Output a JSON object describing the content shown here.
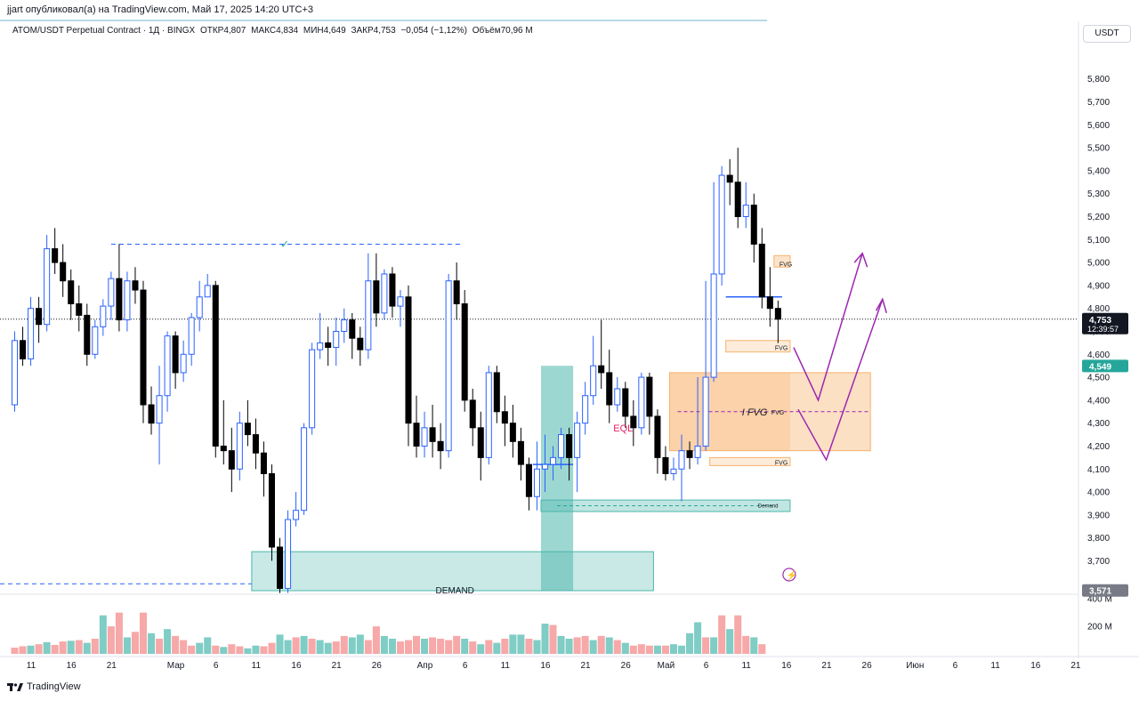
{
  "header": {
    "published": "jjart опубликовал(а) на TradingView.com, Май 17, 2025 14:20 UTC+3"
  },
  "legend": {
    "symbol": "ATOM/USDT Perpetual Contract · 1Д · BINGX",
    "open": "ОТКР4,807",
    "high": "МАКС4,834",
    "low": "МИН4,649",
    "close": "ЗАКР4,753",
    "change": "−0,054 (−1,12%)",
    "volume": "Объём70,96 M"
  },
  "currency": "USDT",
  "footer": {
    "brand": "TradingView"
  },
  "colors": {
    "up": "#2962ff",
    "down": "#000000",
    "vol_up": "#7fcdc5",
    "vol_down": "#f7a8a8",
    "fvg": "#f7b26b",
    "demand": "#4db6ac",
    "arrow": "#9c27b0"
  },
  "chart_data": {
    "type": "candlestick",
    "ylim": [
      3.57,
      5.95
    ],
    "y_ticks": [
      "5,800",
      "5,700",
      "5,600",
      "5,500",
      "5,400",
      "5,300",
      "5,200",
      "5,100",
      "5,000",
      "4,900",
      "4,800",
      "4,700",
      "4,600",
      "4,500",
      "4,400",
      "4,300",
      "4,200",
      "4,100",
      "4,000",
      "3,900",
      "3,800",
      "3,700"
    ],
    "y_tick_values": [
      5.8,
      5.7,
      5.6,
      5.5,
      5.4,
      5.3,
      5.2,
      5.1,
      5.0,
      4.9,
      4.8,
      4.7,
      4.6,
      4.5,
      4.4,
      4.3,
      4.2,
      4.1,
      4.0,
      3.9,
      3.8,
      3.7
    ],
    "x_labels": [
      {
        "label": "11",
        "bar": 0
      },
      {
        "label": "16",
        "bar": 5
      },
      {
        "label": "21",
        "bar": 10
      },
      {
        "label": "Мар",
        "bar": 18
      },
      {
        "label": "6",
        "bar": 23
      },
      {
        "label": "11",
        "bar": 28
      },
      {
        "label": "16",
        "bar": 33
      },
      {
        "label": "21",
        "bar": 38
      },
      {
        "label": "26",
        "bar": 43
      },
      {
        "label": "Апр",
        "bar": 49
      },
      {
        "label": "6",
        "bar": 54
      },
      {
        "label": "11",
        "bar": 59
      },
      {
        "label": "16",
        "bar": 64
      },
      {
        "label": "21",
        "bar": 69
      },
      {
        "label": "26",
        "bar": 74
      },
      {
        "label": "Май",
        "bar": 79
      },
      {
        "label": "6",
        "bar": 84
      },
      {
        "label": "11",
        "bar": 89
      },
      {
        "label": "16",
        "bar": 94
      },
      {
        "label": "21",
        "bar": 99
      },
      {
        "label": "26",
        "bar": 104
      },
      {
        "label": "Июн",
        "bar": 110
      },
      {
        "label": "6",
        "bar": 115
      },
      {
        "label": "11",
        "bar": 120
      },
      {
        "label": "16",
        "bar": 125
      },
      {
        "label": "21",
        "bar": 130
      }
    ],
    "price_tags": [
      {
        "label": "4,753",
        "sub": "12:39:57",
        "value": 4.753,
        "style": "dark"
      },
      {
        "label": "4,549",
        "value": 4.549,
        "style": "green"
      },
      {
        "label": "3,571",
        "value": 3.571,
        "style": "gray"
      }
    ],
    "volume_ticks": [
      "400 M",
      "200 M"
    ],
    "volume_tick_values": [
      400,
      200
    ],
    "candles": [
      [
        4.4,
        4.6,
        4.38,
        4.62,
        4.68,
        4.72,
        4.52,
        4.62
      ],
      [
        4.6,
        4.82,
        4.55,
        4.88
      ],
      [
        4.82,
        4.75,
        4.7,
        4.9
      ],
      [
        4.75,
        5.05,
        4.72,
        5.1
      ],
      [
        5.05,
        4.98,
        4.92,
        5.15
      ],
      [
        4.98,
        4.92,
        4.85,
        5.05
      ],
      [
        4.92,
        4.88,
        4.78,
        5.02
      ],
      [
        4.88,
        4.82,
        4.72,
        4.96
      ],
      [
        4.82,
        4.75,
        4.68,
        4.9
      ],
      [
        4.75,
        4.62,
        4.55,
        4.8
      ]
    ],
    "bars": [
      [
        4.38,
        4.66,
        4.35,
        4.7
      ],
      [
        4.66,
        4.58,
        4.55,
        4.72
      ],
      [
        4.58,
        4.8,
        4.55,
        4.85
      ],
      [
        4.8,
        4.73,
        4.65,
        4.85
      ],
      [
        4.73,
        5.06,
        4.7,
        5.12
      ],
      [
        5.06,
        5.0,
        4.95,
        5.15
      ],
      [
        5.0,
        4.92,
        4.85,
        5.08
      ],
      [
        4.92,
        4.82,
        4.75,
        4.97
      ],
      [
        4.82,
        4.77,
        4.7,
        4.9
      ],
      [
        4.77,
        4.6,
        4.55,
        4.82
      ],
      [
        4.6,
        4.72,
        4.58,
        4.75
      ],
      [
        4.72,
        4.81,
        4.68,
        4.84
      ],
      [
        4.81,
        4.93,
        4.75,
        4.96
      ],
      [
        4.93,
        4.75,
        4.7,
        5.08
      ],
      [
        4.75,
        4.92,
        4.7,
        4.96
      ],
      [
        4.92,
        4.88,
        4.82,
        4.98
      ],
      [
        4.88,
        4.38,
        4.3,
        4.92
      ],
      [
        4.38,
        4.3,
        4.25,
        4.46
      ],
      [
        4.3,
        4.42,
        4.12,
        4.55
      ],
      [
        4.42,
        4.68,
        4.35,
        4.7
      ],
      [
        4.68,
        4.52,
        4.45,
        4.7
      ],
      [
        4.52,
        4.6,
        4.48,
        4.66
      ],
      [
        4.6,
        4.76,
        4.55,
        4.78
      ],
      [
        4.76,
        4.85,
        4.7,
        4.92
      ],
      [
        4.85,
        4.9,
        4.85,
        4.95
      ],
      [
        4.9,
        4.2,
        4.15,
        4.92
      ],
      [
        4.2,
        4.18,
        4.12,
        4.4
      ],
      [
        4.18,
        4.1,
        4.0,
        4.28
      ],
      [
        4.1,
        4.3,
        4.05,
        4.35
      ],
      [
        4.3,
        4.25,
        4.2,
        4.4
      ],
      [
        4.25,
        4.17,
        4.1,
        4.32
      ],
      [
        4.17,
        4.08,
        3.98,
        4.22
      ],
      [
        4.08,
        3.76,
        3.7,
        4.12
      ],
      [
        3.76,
        3.58,
        3.56,
        3.8
      ],
      [
        3.58,
        3.88,
        3.56,
        3.92
      ],
      [
        3.88,
        3.92,
        3.85,
        4.0
      ],
      [
        3.92,
        4.28,
        3.9,
        4.3
      ],
      [
        4.28,
        4.62,
        4.25,
        4.65
      ],
      [
        4.62,
        4.65,
        4.58,
        4.78
      ],
      [
        4.65,
        4.63,
        4.55,
        4.72
      ],
      [
        4.63,
        4.7,
        4.55,
        4.76
      ],
      [
        4.7,
        4.75,
        4.65,
        4.8
      ],
      [
        4.75,
        4.67,
        4.58,
        4.78
      ],
      [
        4.67,
        4.62,
        4.55,
        4.72
      ],
      [
        4.62,
        4.92,
        4.58,
        5.04
      ],
      [
        4.92,
        4.78,
        4.72,
        5.04
      ],
      [
        4.78,
        4.95,
        4.75,
        4.97
      ],
      [
        4.95,
        4.81,
        4.76,
        4.98
      ],
      [
        4.81,
        4.85,
        4.72,
        4.88
      ],
      [
        4.85,
        4.3,
        4.2,
        4.9
      ],
      [
        4.3,
        4.2,
        4.15,
        4.42
      ],
      [
        4.2,
        4.28,
        4.15,
        4.35
      ],
      [
        4.28,
        4.22,
        4.15,
        4.38
      ],
      [
        4.22,
        4.18,
        4.1,
        4.3
      ],
      [
        4.18,
        4.92,
        4.15,
        4.95
      ],
      [
        4.92,
        4.82,
        4.75,
        5.0
      ],
      [
        4.82,
        4.4,
        4.35,
        4.88
      ],
      [
        4.4,
        4.28,
        4.2,
        4.45
      ],
      [
        4.28,
        4.15,
        4.05,
        4.35
      ],
      [
        4.15,
        4.52,
        4.12,
        4.55
      ],
      [
        4.52,
        4.35,
        4.3,
        4.55
      ],
      [
        4.35,
        4.3,
        4.2,
        4.42
      ],
      [
        4.3,
        4.22,
        4.15,
        4.38
      ],
      [
        4.22,
        4.12,
        4.05,
        4.28
      ],
      [
        4.12,
        3.98,
        3.92,
        4.15
      ],
      [
        3.98,
        4.1,
        3.92,
        4.22
      ],
      [
        4.1,
        4.12,
        4.0,
        4.25
      ],
      [
        4.12,
        4.15,
        4.05,
        4.2
      ],
      [
        4.15,
        4.25,
        4.1,
        4.28
      ],
      [
        4.25,
        4.15,
        4.05,
        4.28
      ],
      [
        4.15,
        4.3,
        4.0,
        4.35
      ],
      [
        4.3,
        4.42,
        4.25,
        4.48
      ],
      [
        4.42,
        4.55,
        4.38,
        4.68
      ],
      [
        4.55,
        4.52,
        4.45,
        4.75
      ],
      [
        4.52,
        4.38,
        4.3,
        4.62
      ],
      [
        4.38,
        4.45,
        4.35,
        4.5
      ],
      [
        4.45,
        4.33,
        4.28,
        4.48
      ],
      [
        4.33,
        4.28,
        4.2,
        4.4
      ],
      [
        4.28,
        4.5,
        4.25,
        4.52
      ],
      [
        4.5,
        4.33,
        4.25,
        4.52
      ],
      [
        4.33,
        4.15,
        4.08,
        4.36
      ],
      [
        4.15,
        4.08,
        4.05,
        4.2
      ],
      [
        4.08,
        4.1,
        4.05,
        4.15
      ],
      [
        4.1,
        4.18,
        3.96,
        4.25
      ],
      [
        4.18,
        4.15,
        4.1,
        4.22
      ],
      [
        4.15,
        4.2,
        4.12,
        4.5
      ],
      [
        4.2,
        4.5,
        4.18,
        4.92
      ],
      [
        4.5,
        4.95,
        4.48,
        5.35
      ],
      [
        4.95,
        5.38,
        4.9,
        5.42
      ],
      [
        5.38,
        5.35,
        5.25,
        5.45
      ],
      [
        5.35,
        5.2,
        5.15,
        5.5
      ],
      [
        5.2,
        5.25,
        5.15,
        5.35
      ],
      [
        5.25,
        5.08,
        5.0,
        5.3
      ],
      [
        5.08,
        4.85,
        4.8,
        5.15
      ],
      [
        4.85,
        4.8,
        4.72,
        4.98
      ],
      [
        4.8,
        4.753,
        4.649,
        4.834
      ]
    ],
    "volumes": [
      [
        45,
        0
      ],
      [
        55,
        0
      ],
      [
        60,
        1
      ],
      [
        70,
        0
      ],
      [
        85,
        1
      ],
      [
        65,
        0
      ],
      [
        90,
        0
      ],
      [
        95,
        1
      ],
      [
        100,
        0
      ],
      [
        80,
        1
      ],
      [
        110,
        0
      ],
      [
        280,
        1
      ],
      [
        200,
        0
      ],
      [
        300,
        0
      ],
      [
        120,
        1
      ],
      [
        160,
        0
      ],
      [
        300,
        0
      ],
      [
        150,
        1
      ],
      [
        110,
        0
      ],
      [
        180,
        1
      ],
      [
        130,
        0
      ],
      [
        100,
        0
      ],
      [
        60,
        0
      ],
      [
        80,
        1
      ],
      [
        120,
        1
      ],
      [
        60,
        0
      ],
      [
        50,
        1
      ],
      [
        70,
        0
      ],
      [
        55,
        0
      ],
      [
        40,
        1
      ],
      [
        60,
        1
      ],
      [
        55,
        0
      ],
      [
        80,
        0
      ],
      [
        140,
        1
      ],
      [
        100,
        1
      ],
      [
        120,
        0
      ],
      [
        130,
        1
      ],
      [
        110,
        0
      ],
      [
        100,
        1
      ],
      [
        80,
        1
      ],
      [
        90,
        0
      ],
      [
        130,
        0
      ],
      [
        120,
        1
      ],
      [
        140,
        1
      ],
      [
        100,
        0
      ],
      [
        200,
        0
      ],
      [
        130,
        1
      ],
      [
        110,
        1
      ],
      [
        90,
        0
      ],
      [
        100,
        0
      ],
      [
        130,
        0
      ],
      [
        110,
        1
      ],
      [
        120,
        0
      ],
      [
        110,
        0
      ],
      [
        100,
        0
      ],
      [
        130,
        0
      ],
      [
        110,
        1
      ],
      [
        90,
        0
      ],
      [
        70,
        1
      ],
      [
        100,
        0
      ],
      [
        80,
        1
      ],
      [
        110,
        0
      ],
      [
        140,
        1
      ],
      [
        140,
        1
      ],
      [
        110,
        0
      ],
      [
        100,
        1
      ],
      [
        220,
        1
      ],
      [
        210,
        0
      ],
      [
        130,
        1
      ],
      [
        110,
        1
      ],
      [
        120,
        0
      ],
      [
        130,
        0
      ],
      [
        100,
        1
      ],
      [
        130,
        0
      ],
      [
        120,
        1
      ],
      [
        100,
        0
      ],
      [
        80,
        1
      ],
      [
        60,
        0
      ],
      [
        70,
        0
      ],
      [
        60,
        0
      ],
      [
        60,
        1
      ],
      [
        60,
        0
      ],
      [
        70,
        1
      ],
      [
        60,
        1
      ],
      [
        150,
        1
      ],
      [
        230,
        1
      ],
      [
        120,
        0
      ],
      [
        120,
        1
      ],
      [
        280,
        0
      ],
      [
        180,
        1
      ],
      [
        280,
        0
      ],
      [
        130,
        0
      ],
      [
        120,
        1
      ],
      [
        70,
        0
      ]
    ],
    "annotations": [
      {
        "text": "FVG",
        "kind": "zone-label",
        "value": 4.995,
        "bar_from": 87,
        "bar_to": 88
      },
      {
        "text": "FVG",
        "kind": "zone-label",
        "value": 4.63,
        "bar_from": 80,
        "bar_to": 87
      },
      {
        "text": "I FVG",
        "kind": "zone-label",
        "value": 4.35,
        "bar_from": 74,
        "bar_to": 95
      },
      {
        "text": "FVG",
        "kind": "zone-label",
        "value": 4.35,
        "bar_from": 83,
        "bar_to": 87
      },
      {
        "text": "FVG",
        "kind": "zone-label",
        "value": 4.13,
        "bar_from": 78,
        "bar_to": 87
      },
      {
        "text": "Demand",
        "kind": "zone-label",
        "value": 3.945,
        "bar_from": 63,
        "bar_to": 87
      },
      {
        "text": "DEMAND",
        "kind": "zone-label",
        "value": 3.6,
        "bar_from": 28,
        "bar_to": 72
      },
      {
        "text": "EQL",
        "kind": "text",
        "value": 4.28,
        "bar": 68
      }
    ]
  }
}
